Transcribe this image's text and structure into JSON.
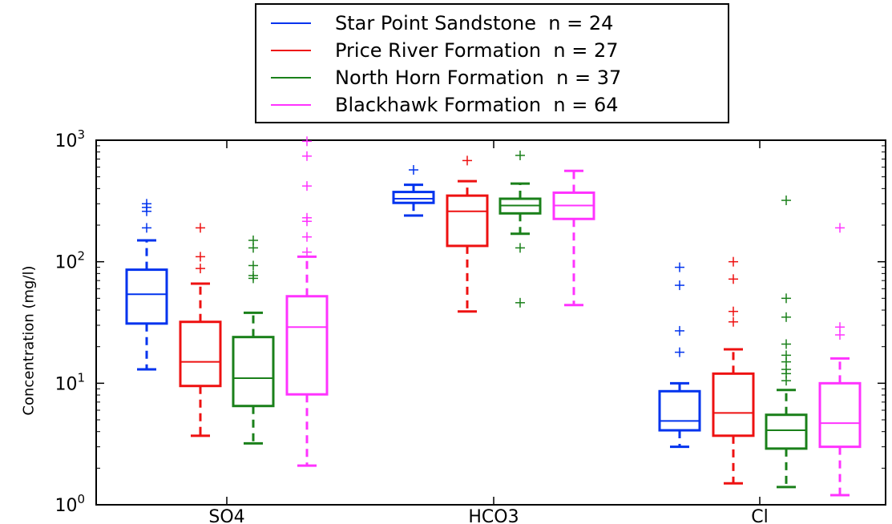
{
  "chart_data": {
    "type": "boxplot",
    "ylabel": "Concentration (mg/l)",
    "yscale": "log",
    "ylim": [
      1,
      1000
    ],
    "categories": [
      "SO4",
      "HCO3",
      "Cl"
    ],
    "series": [
      {
        "name": "Star Point Sandstone",
        "legend_label": "Star Point Sandstone  n = 24",
        "color": "#0033ee",
        "boxes": [
          {
            "whislo": 13,
            "q1": 31,
            "med": 54,
            "q3": 86,
            "whishi": 150,
            "fliers": [
              190,
              260,
              280,
              300
            ]
          },
          {
            "whislo": 240,
            "q1": 305,
            "med": 330,
            "q3": 375,
            "whishi": 430,
            "fliers": [
              570
            ]
          },
          {
            "whislo": 3.0,
            "q1": 4.1,
            "med": 4.9,
            "q3": 8.6,
            "whishi": 10,
            "fliers": [
              18,
              27,
              64,
              90
            ]
          }
        ]
      },
      {
        "name": "Price River Formation",
        "legend_label": "Price River Formation  n = 27",
        "color": "#ee1111",
        "boxes": [
          {
            "whislo": 3.7,
            "q1": 9.5,
            "med": 15,
            "q3": 32,
            "whishi": 66,
            "fliers": [
              88,
              110,
              190
            ]
          },
          {
            "whislo": 39,
            "q1": 135,
            "med": 260,
            "q3": 350,
            "whishi": 460,
            "fliers": [
              680
            ]
          },
          {
            "whislo": 1.5,
            "q1": 3.7,
            "med": 5.7,
            "q3": 12,
            "whishi": 19,
            "fliers": [
              32,
              39,
              72,
              100
            ]
          }
        ]
      },
      {
        "name": "North Horn Formation",
        "legend_label": "North Horn Formation  n = 37",
        "color": "#1a801a",
        "boxes": [
          {
            "whislo": 3.2,
            "q1": 6.5,
            "med": 11,
            "q3": 24,
            "whishi": 38,
            "fliers": [
              73,
              77,
              93,
              130,
              150
            ]
          },
          {
            "whislo": 170,
            "q1": 250,
            "med": 290,
            "q3": 330,
            "whishi": 440,
            "fliers": [
              46,
              130,
              750
            ]
          },
          {
            "whislo": 1.4,
            "q1": 2.9,
            "med": 4.1,
            "q3": 5.5,
            "whishi": 8.8,
            "fliers": [
              10.5,
              12,
              13,
              15,
              17,
              21,
              35,
              50,
              320
            ]
          }
        ]
      },
      {
        "name": "Blackhawk Formation",
        "legend_label": "Blackhawk Formation  n = 64",
        "color": "#ff33ff",
        "boxes": [
          {
            "whislo": 2.1,
            "q1": 8.1,
            "med": 29,
            "q3": 52,
            "whishi": 110,
            "fliers": [
              120,
              160,
              215,
              230,
              420,
              740,
              980
            ]
          },
          {
            "whislo": 44,
            "q1": 225,
            "med": 290,
            "q3": 370,
            "whishi": 560,
            "fliers": []
          },
          {
            "whislo": 1.2,
            "q1": 3.0,
            "med": 4.7,
            "q3": 10,
            "whishi": 16,
            "fliers": [
              25,
              29,
              190
            ]
          }
        ]
      }
    ],
    "yticks": [
      {
        "mantissa": "10",
        "exponent": "0"
      },
      {
        "mantissa": "10",
        "exponent": "1"
      },
      {
        "mantissa": "10",
        "exponent": "2"
      },
      {
        "mantissa": "10",
        "exponent": "3"
      }
    ],
    "legend_position": "top-center-outside"
  }
}
